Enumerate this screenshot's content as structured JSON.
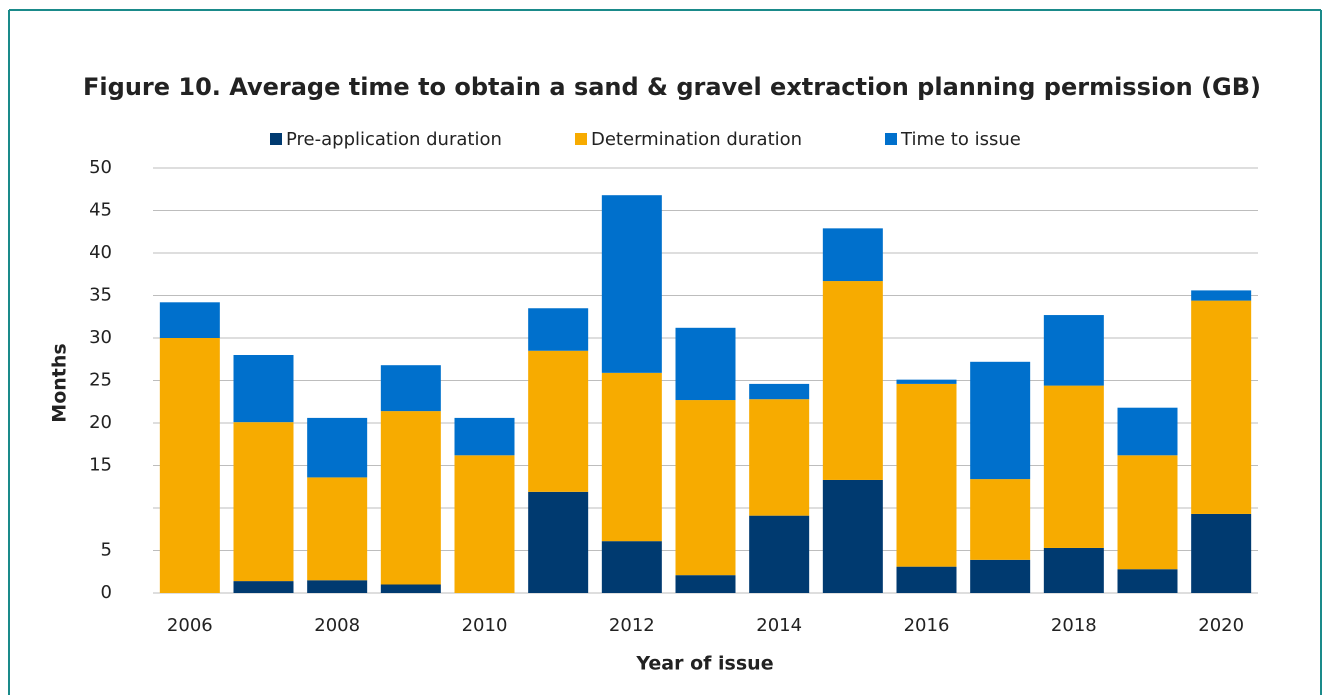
{
  "chart_data": {
    "type": "stacked_bar",
    "title": "Figure 10. Average time to obtain a sand & gravel extraction planning permission (GB)",
    "x_label": "Year of issue",
    "y_label": "Months",
    "categories": [
      "2006",
      null,
      "2008",
      null,
      "2010",
      null,
      "2012",
      null,
      "2014",
      null,
      "2016",
      null,
      "2018",
      null,
      "2020"
    ],
    "series": [
      {
        "name": "Pre-application duration",
        "color": "#003a70",
        "values": [
          0,
          1.4,
          1.5,
          1.0,
          0,
          11.9,
          6.1,
          2.1,
          9.1,
          13.3,
          3.1,
          3.9,
          5.3,
          2.8,
          9.3
        ]
      },
      {
        "name": "Determination duration",
        "color": "#f7ab00",
        "values": [
          30.0,
          18.7,
          12.1,
          20.4,
          16.2,
          16.6,
          19.8,
          20.6,
          13.7,
          23.4,
          21.5,
          9.5,
          19.1,
          13.4,
          25.1
        ]
      },
      {
        "name": "Time to issue",
        "color": "#0070cc",
        "values": [
          4.2,
          7.9,
          7.0,
          5.4,
          4.4,
          5.0,
          20.9,
          8.5,
          1.8,
          6.2,
          0.5,
          13.8,
          8.3,
          5.6,
          1.2
        ]
      }
    ],
    "ylim": [
      0,
      50
    ],
    "yticks": [
      0,
      5,
      15,
      20,
      25,
      30,
      35,
      40,
      45,
      50
    ],
    "ygrid": [
      0,
      5,
      10,
      15,
      20,
      25,
      30,
      35,
      40,
      45,
      50
    ],
    "legend": "top"
  }
}
